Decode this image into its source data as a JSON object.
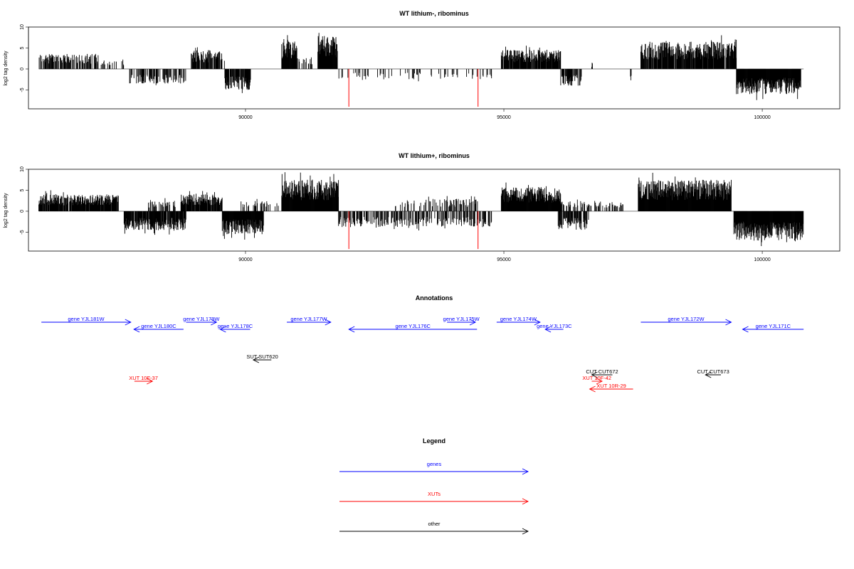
{
  "chart_data": [
    {
      "type": "bar",
      "title": "WT lithium-, ribominus",
      "ylabel": "log2 tag density",
      "xlabel": "",
      "xlim": [
        85800,
        101500
      ],
      "ylim": [
        -9.5,
        10
      ],
      "yticks": [
        10,
        5,
        0,
        -5
      ],
      "xticks": [
        90000,
        95000,
        100000
      ],
      "highlight_color": "#ff0000",
      "positive_blocks": [
        {
          "start": 86000,
          "end": 87150,
          "density": 0.6,
          "height": 3.6
        },
        {
          "start": 87200,
          "end": 87700,
          "density": 0.2,
          "height": 2.5
        },
        {
          "start": 88950,
          "end": 89550,
          "density": 0.8,
          "height": 4.5
        },
        {
          "start": 89550,
          "end": 89650,
          "density": 0.2,
          "height": 2.0
        },
        {
          "start": 90700,
          "end": 91000,
          "density": 1.0,
          "height": 7.0
        },
        {
          "start": 91000,
          "end": 91300,
          "density": 0.3,
          "height": 3.0
        },
        {
          "start": 91400,
          "end": 91780,
          "density": 1.0,
          "height": 8.0
        },
        {
          "start": 94950,
          "end": 96100,
          "density": 0.9,
          "height": 4.6
        },
        {
          "start": 96700,
          "end": 96720,
          "density": 1.0,
          "height": 1.5
        },
        {
          "start": 97650,
          "end": 99500,
          "density": 0.9,
          "height": 6.5
        }
      ],
      "negative_blocks": [
        {
          "start": 87750,
          "end": 88850,
          "density": 0.5,
          "height": 3.5
        },
        {
          "start": 89600,
          "end": 90100,
          "density": 0.9,
          "height": 5.0
        },
        {
          "start": 91800,
          "end": 94800,
          "density": 0.15,
          "height": 2.5
        },
        {
          "start": 96100,
          "end": 96500,
          "density": 0.8,
          "height": 4.0
        },
        {
          "start": 97450,
          "end": 97470,
          "density": 1.0,
          "height": 3.0
        },
        {
          "start": 99500,
          "end": 100750,
          "density": 1.0,
          "height": 6.0
        }
      ],
      "highlight_lines": [
        {
          "x": 92000,
          "y": -9.0
        },
        {
          "x": 94500,
          "y": -9.0
        }
      ]
    },
    {
      "type": "bar",
      "title": "WT lithium+, ribominus",
      "ylabel": "log2 tag density",
      "xlabel": "",
      "xlim": [
        85800,
        101500
      ],
      "ylim": [
        -9.5,
        10
      ],
      "yticks": [
        10,
        5,
        0,
        -5
      ],
      "xticks": [
        90000,
        95000,
        100000
      ],
      "highlight_color": "#ff0000",
      "positive_blocks": [
        {
          "start": 86000,
          "end": 87550,
          "density": 0.9,
          "height": 4.0
        },
        {
          "start": 88100,
          "end": 88650,
          "density": 0.4,
          "height": 2.5
        },
        {
          "start": 88750,
          "end": 89550,
          "density": 0.9,
          "height": 4.0
        },
        {
          "start": 89900,
          "end": 90650,
          "density": 0.3,
          "height": 2.5
        },
        {
          "start": 90700,
          "end": 91800,
          "density": 1.0,
          "height": 7.5
        },
        {
          "start": 92900,
          "end": 94500,
          "density": 0.25,
          "height": 3.0
        },
        {
          "start": 94950,
          "end": 96100,
          "density": 1.0,
          "height": 5.8
        },
        {
          "start": 96100,
          "end": 97400,
          "density": 0.3,
          "height": 2.5
        },
        {
          "start": 97600,
          "end": 99400,
          "density": 1.0,
          "height": 7.5
        }
      ],
      "negative_blocks": [
        {
          "start": 87650,
          "end": 88850,
          "density": 0.9,
          "height": 4.5
        },
        {
          "start": 89550,
          "end": 90350,
          "density": 1.0,
          "height": 5.5
        },
        {
          "start": 91800,
          "end": 94800,
          "density": 0.45,
          "height": 3.8
        },
        {
          "start": 96050,
          "end": 96650,
          "density": 0.8,
          "height": 4.5
        },
        {
          "start": 99450,
          "end": 100800,
          "density": 1.0,
          "height": 7.0
        }
      ],
      "highlight_lines": [
        {
          "x": 92000,
          "y": -9.0
        },
        {
          "x": 94500,
          "y": -9.0
        }
      ]
    }
  ],
  "annotations": {
    "title": "Annotations",
    "features": [
      {
        "label": "gene YJL181W",
        "x1": 86050,
        "x2": 87780,
        "dir": "right",
        "row": "upper",
        "type": "gene"
      },
      {
        "label": "gene YJL180C",
        "x1": 87840,
        "x2": 88800,
        "dir": "left",
        "row": "lower",
        "type": "gene"
      },
      {
        "label": "gene YJL179W",
        "x1": 88850,
        "x2": 89440,
        "dir": "right",
        "row": "upper",
        "type": "gene"
      },
      {
        "label": "gene YJL178C",
        "x1": 89510,
        "x2": 90090,
        "dir": "left",
        "row": "lower",
        "type": "gene"
      },
      {
        "label": "gene YJL177W",
        "x1": 90800,
        "x2": 91650,
        "dir": "right",
        "row": "upper",
        "type": "gene"
      },
      {
        "label": "gene YJL176C",
        "x1": 92000,
        "x2": 94480,
        "dir": "left",
        "row": "lower",
        "type": "gene"
      },
      {
        "label": "gene YJL175W",
        "x1": 93900,
        "x2": 94450,
        "dir": "right",
        "row": "upper",
        "type": "gene"
      },
      {
        "label": "gene YJL174W",
        "x1": 94860,
        "x2": 95700,
        "dir": "right",
        "row": "upper",
        "type": "gene"
      },
      {
        "label": "gene YJL173C",
        "x1": 95800,
        "x2": 96150,
        "dir": "left",
        "row": "lower",
        "type": "gene"
      },
      {
        "label": "gene YJL172W",
        "x1": 97650,
        "x2": 99400,
        "dir": "right",
        "row": "upper",
        "type": "gene"
      },
      {
        "label": "gene YJL171C",
        "x1": 99620,
        "x2": 100800,
        "dir": "left",
        "row": "lower",
        "type": "gene"
      },
      {
        "label": "SUT SUT620",
        "x1": 90150,
        "x2": 90500,
        "dir": "left",
        "row": "sut",
        "type": "other"
      },
      {
        "label": "CUT CUT672",
        "x1": 96700,
        "x2": 97100,
        "dir": "left",
        "row": "cut",
        "type": "other"
      },
      {
        "label": "CUT CUT673",
        "x1": 98900,
        "x2": 99200,
        "dir": "left",
        "row": "cut",
        "type": "other"
      },
      {
        "label": "XUT 10F-37",
        "x1": 87850,
        "x2": 88200,
        "dir": "right",
        "row": "xut1",
        "type": "xut"
      },
      {
        "label": "XUT 10F-42",
        "x1": 96700,
        "x2": 96900,
        "dir": "right",
        "row": "xut1",
        "type": "xut"
      },
      {
        "label": "XUT 10R-29",
        "x1": 96660,
        "x2": 97500,
        "dir": "left",
        "row": "xut2",
        "type": "xut"
      }
    ]
  },
  "legend": {
    "title": "Legend",
    "items": [
      {
        "label": "genes",
        "color": "#0000ff"
      },
      {
        "label": "XUTs",
        "color": "#ff0000"
      },
      {
        "label": "other",
        "color": "#000000"
      }
    ]
  }
}
